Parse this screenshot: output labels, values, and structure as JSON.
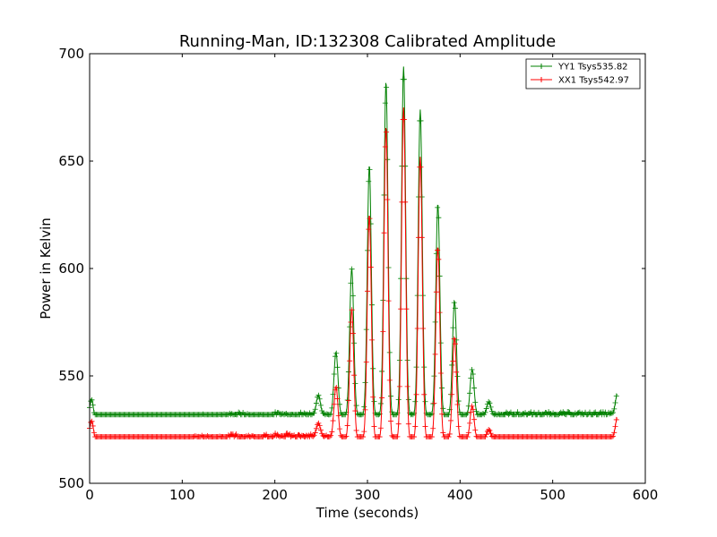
{
  "chart_data": {
    "type": "line",
    "title": "Running-Man, ID:132308 Calibrated Amplitude",
    "xlabel": "Time (seconds)",
    "ylabel": "Power in Kelvin",
    "xlim": [
      0,
      600
    ],
    "ylim": [
      500,
      700
    ],
    "xticks": [
      0,
      100,
      200,
      300,
      400,
      500,
      600
    ],
    "yticks": [
      500,
      550,
      600,
      650,
      700
    ],
    "grid": false,
    "legend_position": "top-right",
    "colors": {
      "YY1": "#008000",
      "XX1": "#ff0000"
    },
    "series": [
      {
        "name": "YY1 Tsys535.82",
        "color": "#008000",
        "baseline": [
          [
            0,
            528
          ],
          [
            20,
            528
          ],
          [
            40,
            529
          ],
          [
            60,
            529
          ],
          [
            80,
            529
          ],
          [
            100,
            530
          ],
          [
            120,
            531
          ],
          [
            140,
            531
          ],
          [
            160,
            532
          ],
          [
            180,
            531
          ],
          [
            200,
            532
          ],
          [
            220,
            532
          ],
          [
            240,
            532
          ],
          [
            260,
            531
          ],
          [
            280,
            531
          ],
          [
            300,
            531
          ],
          [
            320,
            531
          ],
          [
            340,
            531
          ],
          [
            360,
            531
          ],
          [
            380,
            531
          ],
          [
            400,
            531
          ],
          [
            420,
            531
          ],
          [
            440,
            532
          ],
          [
            460,
            532
          ],
          [
            480,
            532
          ],
          [
            500,
            532
          ],
          [
            520,
            532
          ],
          [
            540,
            532
          ],
          [
            560,
            532
          ],
          [
            570,
            532
          ]
        ],
        "spikes": [
          [
            2,
            539
          ],
          [
            247,
            541
          ],
          [
            266,
            561
          ],
          [
            283,
            600
          ],
          [
            302,
            648
          ],
          [
            320,
            687
          ],
          [
            339,
            694
          ],
          [
            357,
            674
          ],
          [
            376,
            630
          ],
          [
            394,
            585
          ],
          [
            413,
            553
          ],
          [
            431,
            538
          ],
          [
            570,
            542
          ]
        ]
      },
      {
        "name": "XX1 Tsys542.97",
        "color": "#ff0000",
        "baseline": [
          [
            0,
            519
          ],
          [
            20,
            520
          ],
          [
            40,
            520
          ],
          [
            60,
            520
          ],
          [
            80,
            520
          ],
          [
            100,
            520
          ],
          [
            120,
            521
          ],
          [
            140,
            521
          ],
          [
            160,
            522
          ],
          [
            180,
            521
          ],
          [
            200,
            522
          ],
          [
            220,
            522
          ],
          [
            240,
            522
          ],
          [
            260,
            521
          ],
          [
            280,
            520
          ],
          [
            300,
            520
          ],
          [
            320,
            520
          ],
          [
            340,
            520
          ],
          [
            360,
            520
          ],
          [
            380,
            520
          ],
          [
            400,
            520
          ],
          [
            420,
            520
          ],
          [
            440,
            521
          ],
          [
            460,
            520
          ],
          [
            480,
            520
          ],
          [
            500,
            520
          ],
          [
            520,
            520
          ],
          [
            540,
            520
          ],
          [
            560,
            520
          ],
          [
            570,
            521
          ]
        ],
        "spikes": [
          [
            2,
            529
          ],
          [
            247,
            528
          ],
          [
            266,
            545
          ],
          [
            283,
            581
          ],
          [
            302,
            625
          ],
          [
            320,
            666
          ],
          [
            339,
            675
          ],
          [
            357,
            652
          ],
          [
            376,
            610
          ],
          [
            394,
            568
          ],
          [
            413,
            536
          ],
          [
            431,
            525
          ],
          [
            570,
            531
          ]
        ]
      }
    ]
  }
}
